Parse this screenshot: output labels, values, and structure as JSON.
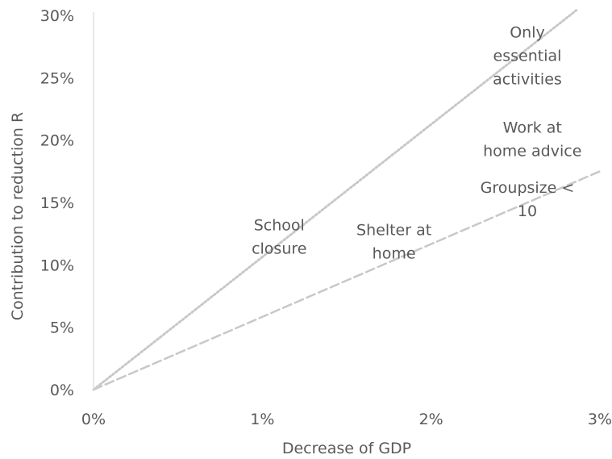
{
  "chart_data": {
    "type": "scatter",
    "title": "",
    "xlabel": "Decrease of GDP",
    "ylabel": "Contribution to reduction R",
    "xlim": [
      0,
      3
    ],
    "ylim": [
      0,
      30
    ],
    "x_ticks": [
      {
        "value": 0,
        "label": "0%"
      },
      {
        "value": 1,
        "label": "1%"
      },
      {
        "value": 2,
        "label": "2%"
      },
      {
        "value": 3,
        "label": "3%"
      }
    ],
    "y_ticks": [
      {
        "value": 0,
        "label": "0%"
      },
      {
        "value": 5,
        "label": "5%"
      },
      {
        "value": 10,
        "label": "10%"
      },
      {
        "value": 15,
        "label": "15%"
      },
      {
        "value": 20,
        "label": "20%"
      },
      {
        "value": 25,
        "label": "25%"
      },
      {
        "value": 30,
        "label": "30%"
      }
    ],
    "grid": false,
    "reference_lines": [
      {
        "style": "dotted",
        "color": "#c8c8c8",
        "from": [
          0,
          0
        ],
        "to": [
          2.86,
          30.4
        ]
      },
      {
        "style": "dashed",
        "color": "#c8c8c8",
        "from": [
          0,
          0
        ],
        "to": [
          3.0,
          17.5
        ]
      }
    ],
    "points": [
      {
        "label": [
          "School",
          "closure"
        ],
        "x": 1.1,
        "y": 12.3
      },
      {
        "label": [
          "Shelter at",
          "home"
        ],
        "x": 1.78,
        "y": 11.9
      },
      {
        "label": [
          "Groupsize <",
          "10"
        ],
        "x": 2.57,
        "y": 15.3
      },
      {
        "label": [
          "Work at",
          "home advice"
        ],
        "x": 2.6,
        "y": 20.1
      },
      {
        "label": [
          "Only",
          "essential",
          "activities"
        ],
        "x": 2.57,
        "y": 26.8
      }
    ]
  }
}
